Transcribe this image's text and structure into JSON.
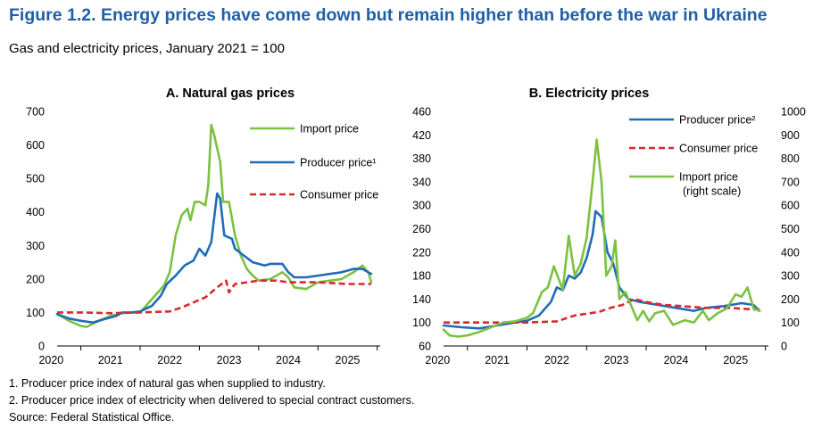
{
  "figure": {
    "title": "Figure 1.2. Energy prices have come down but remain higher than before the war in Ukraine",
    "subtitle": "Gas and electricity prices, January 2021 = 100"
  },
  "colors": {
    "import": "#7dc142",
    "producer": "#1f6cb8",
    "consumer": "#d9282f"
  },
  "notes": [
    "1. Producer price index of natural gas when supplied to industry.",
    "2. Producer price index of electricity when delivered to special contract customers.",
    "Source: Federal Statistical Office."
  ],
  "chart_data": [
    {
      "type": "line",
      "title": "A. Natural gas prices",
      "ylim": [
        0,
        700
      ],
      "yticks": [
        0,
        100,
        200,
        300,
        400,
        500,
        600,
        700
      ],
      "xlim": [
        2019.6,
        2025.05
      ],
      "xticks": [
        2020,
        2021,
        2022,
        2023,
        2024,
        2025
      ],
      "grid": false,
      "legend_position": "top-right",
      "series": [
        {
          "name": "Import price",
          "style": "solid",
          "axis": "left",
          "points": [
            [
              2019.6,
              95
            ],
            [
              2019.8,
              75
            ],
            [
              2020.0,
              60
            ],
            [
              2020.1,
              57
            ],
            [
              2020.3,
              75
            ],
            [
              2020.5,
              90
            ],
            [
              2020.7,
              98
            ],
            [
              2020.9,
              100
            ],
            [
              2021.0,
              100
            ],
            [
              2021.2,
              140
            ],
            [
              2021.4,
              180
            ],
            [
              2021.5,
              220
            ],
            [
              2021.6,
              330
            ],
            [
              2021.7,
              390
            ],
            [
              2021.8,
              410
            ],
            [
              2021.85,
              375
            ],
            [
              2021.92,
              430
            ],
            [
              2022.0,
              430
            ],
            [
              2022.1,
              420
            ],
            [
              2022.15,
              480
            ],
            [
              2022.2,
              660
            ],
            [
              2022.25,
              630
            ],
            [
              2022.35,
              550
            ],
            [
              2022.4,
              430
            ],
            [
              2022.5,
              430
            ],
            [
              2022.6,
              330
            ],
            [
              2022.7,
              270
            ],
            [
              2022.8,
              230
            ],
            [
              2022.9,
              210
            ],
            [
              2023.0,
              195
            ],
            [
              2023.2,
              200
            ],
            [
              2023.4,
              220
            ],
            [
              2023.5,
              205
            ],
            [
              2023.6,
              175
            ],
            [
              2023.8,
              170
            ],
            [
              2024.0,
              190
            ],
            [
              2024.2,
              195
            ],
            [
              2024.4,
              200
            ],
            [
              2024.6,
              220
            ],
            [
              2024.75,
              240
            ],
            [
              2024.85,
              220
            ],
            [
              2024.9,
              190
            ]
          ]
        },
        {
          "name": "Producer price¹",
          "style": "solid",
          "axis": "left",
          "points": [
            [
              2019.6,
              95
            ],
            [
              2019.8,
              82
            ],
            [
              2020.0,
              75
            ],
            [
              2020.2,
              70
            ],
            [
              2020.4,
              80
            ],
            [
              2020.6,
              90
            ],
            [
              2020.7,
              100
            ],
            [
              2020.85,
              100
            ],
            [
              2021.0,
              103
            ],
            [
              2021.2,
              120
            ],
            [
              2021.35,
              150
            ],
            [
              2021.45,
              185
            ],
            [
              2021.6,
              210
            ],
            [
              2021.75,
              240
            ],
            [
              2021.9,
              255
            ],
            [
              2022.0,
              290
            ],
            [
              2022.1,
              270
            ],
            [
              2022.2,
              310
            ],
            [
              2022.3,
              455
            ],
            [
              2022.35,
              440
            ],
            [
              2022.42,
              330
            ],
            [
              2022.55,
              320
            ],
            [
              2022.6,
              290
            ],
            [
              2022.75,
              270
            ],
            [
              2022.9,
              250
            ],
            [
              2023.1,
              240
            ],
            [
              2023.2,
              245
            ],
            [
              2023.4,
              245
            ],
            [
              2023.5,
              220
            ],
            [
              2023.6,
              205
            ],
            [
              2023.8,
              205
            ],
            [
              2024.0,
              210
            ],
            [
              2024.2,
              215
            ],
            [
              2024.4,
              220
            ],
            [
              2024.6,
              230
            ],
            [
              2024.75,
              230
            ],
            [
              2024.9,
              215
            ]
          ]
        },
        {
          "name": "Consumer price",
          "style": "dashed",
          "axis": "left",
          "points": [
            [
              2019.6,
              100
            ],
            [
              2020.0,
              100
            ],
            [
              2020.5,
              98
            ],
            [
              2021.0,
              100
            ],
            [
              2021.5,
              103
            ],
            [
              2021.7,
              115
            ],
            [
              2021.9,
              130
            ],
            [
              2022.1,
              145
            ],
            [
              2022.3,
              175
            ],
            [
              2022.45,
              195
            ],
            [
              2022.5,
              160
            ],
            [
              2022.6,
              185
            ],
            [
              2022.8,
              190
            ],
            [
              2023.0,
              195
            ],
            [
              2023.3,
              195
            ],
            [
              2023.5,
              190
            ],
            [
              2024.0,
              190
            ],
            [
              2024.5,
              185
            ],
            [
              2024.9,
              185
            ]
          ]
        }
      ]
    },
    {
      "type": "line",
      "title": "B. Electricity prices",
      "ylim": [
        60,
        460
      ],
      "yticks": [
        60,
        100,
        140,
        180,
        220,
        260,
        300,
        340,
        380,
        420,
        460
      ],
      "y2lim": [
        0,
        1000
      ],
      "y2ticks": [
        0,
        100,
        200,
        300,
        400,
        500,
        600,
        700,
        800,
        900,
        1000
      ],
      "xlim": [
        2019.6,
        2025.05
      ],
      "xticks": [
        2020,
        2021,
        2022,
        2023,
        2024,
        2025
      ],
      "grid": false,
      "legend_position": "top-right",
      "series": [
        {
          "name": "Producer price²",
          "style": "solid",
          "axis": "left",
          "points": [
            [
              2019.6,
              95
            ],
            [
              2019.9,
              92
            ],
            [
              2020.2,
              90
            ],
            [
              2020.5,
              95
            ],
            [
              2020.8,
              100
            ],
            [
              2021.0,
              103
            ],
            [
              2021.2,
              112
            ],
            [
              2021.4,
              135
            ],
            [
              2021.5,
              160
            ],
            [
              2021.6,
              155
            ],
            [
              2021.7,
              180
            ],
            [
              2021.8,
              175
            ],
            [
              2021.9,
              185
            ],
            [
              2022.0,
              210
            ],
            [
              2022.1,
              250
            ],
            [
              2022.15,
              290
            ],
            [
              2022.25,
              280
            ],
            [
              2022.35,
              220
            ],
            [
              2022.45,
              200
            ],
            [
              2022.55,
              160
            ],
            [
              2022.7,
              140
            ],
            [
              2022.9,
              135
            ],
            [
              2023.2,
              130
            ],
            [
              2023.5,
              125
            ],
            [
              2023.8,
              120
            ],
            [
              2024.0,
              125
            ],
            [
              2024.3,
              128
            ],
            [
              2024.6,
              133
            ],
            [
              2024.8,
              130
            ],
            [
              2024.9,
              120
            ]
          ]
        },
        {
          "name": "Consumer price",
          "style": "dashed",
          "axis": "left",
          "points": [
            [
              2019.6,
              100
            ],
            [
              2020.0,
              100
            ],
            [
              2020.5,
              100
            ],
            [
              2021.0,
              100
            ],
            [
              2021.5,
              102
            ],
            [
              2021.8,
              112
            ],
            [
              2022.0,
              115
            ],
            [
              2022.2,
              118
            ],
            [
              2022.4,
              125
            ],
            [
              2022.6,
              130
            ],
            [
              2022.8,
              140
            ],
            [
              2023.0,
              135
            ],
            [
              2023.3,
              130
            ],
            [
              2023.6,
              128
            ],
            [
              2024.0,
              125
            ],
            [
              2024.4,
              125
            ],
            [
              2024.7,
              123
            ],
            [
              2024.9,
              122
            ]
          ]
        },
        {
          "name": "Import price\n(right scale)",
          "style": "solid",
          "axis": "right",
          "points": [
            [
              2019.6,
              70
            ],
            [
              2019.7,
              45
            ],
            [
              2019.85,
              40
            ],
            [
              2020.0,
              45
            ],
            [
              2020.2,
              60
            ],
            [
              2020.4,
              80
            ],
            [
              2020.6,
              100
            ],
            [
              2020.8,
              105
            ],
            [
              2021.0,
              120
            ],
            [
              2021.1,
              140
            ],
            [
              2021.25,
              230
            ],
            [
              2021.35,
              250
            ],
            [
              2021.45,
              340
            ],
            [
              2021.6,
              240
            ],
            [
              2021.7,
              470
            ],
            [
              2021.8,
              300
            ],
            [
              2021.9,
              350
            ],
            [
              2022.0,
              460
            ],
            [
              2022.1,
              700
            ],
            [
              2022.17,
              880
            ],
            [
              2022.25,
              700
            ],
            [
              2022.33,
              300
            ],
            [
              2022.42,
              340
            ],
            [
              2022.48,
              450
            ],
            [
              2022.55,
              200
            ],
            [
              2022.65,
              230
            ],
            [
              2022.75,
              170
            ],
            [
              2022.85,
              110
            ],
            [
              2022.95,
              150
            ],
            [
              2023.05,
              105
            ],
            [
              2023.15,
              140
            ],
            [
              2023.3,
              150
            ],
            [
              2023.45,
              90
            ],
            [
              2023.55,
              100
            ],
            [
              2023.65,
              110
            ],
            [
              2023.8,
              100
            ],
            [
              2023.95,
              150
            ],
            [
              2024.05,
              110
            ],
            [
              2024.2,
              140
            ],
            [
              2024.35,
              160
            ],
            [
              2024.5,
              220
            ],
            [
              2024.6,
              210
            ],
            [
              2024.7,
              250
            ],
            [
              2024.8,
              160
            ],
            [
              2024.9,
              150
            ]
          ]
        }
      ]
    }
  ]
}
